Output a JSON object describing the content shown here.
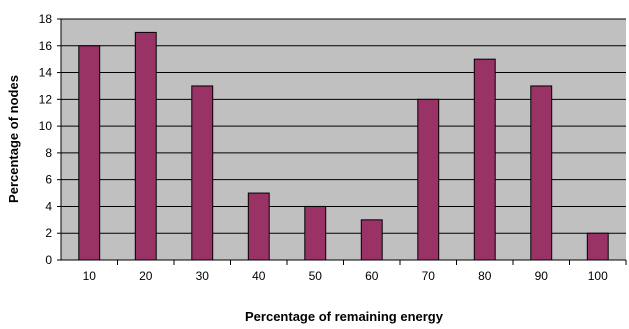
{
  "chart_data": {
    "type": "bar",
    "title": "",
    "xlabel": "Percentage of remaining energy",
    "ylabel": "Percentage of nodes",
    "categories": [
      "10",
      "20",
      "30",
      "40",
      "50",
      "60",
      "70",
      "80",
      "90",
      "100"
    ],
    "values": [
      16,
      17,
      13,
      5,
      4,
      3,
      12,
      15,
      13,
      2
    ],
    "ylim": [
      0,
      18
    ],
    "yticks": [
      "0",
      "2",
      "4",
      "6",
      "8",
      "10",
      "12",
      "14",
      "16",
      "18"
    ],
    "grid": true,
    "legend": "none",
    "colors": {
      "bar": "#993366",
      "plot_background": "#c0c0c0",
      "gridline": "#000000"
    }
  }
}
